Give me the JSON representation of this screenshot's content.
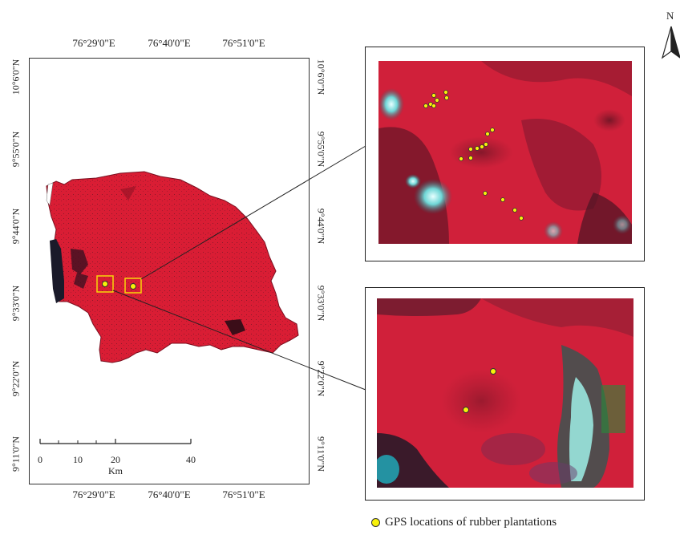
{
  "main_map": {
    "top_ticks": [
      "76°29'0\"E",
      "76°40'0\"E",
      "76°51'0\"E"
    ],
    "bottom_ticks": [
      "76°29'0\"E",
      "76°40'0\"E",
      "76°51'0\"E"
    ],
    "left_ticks": [
      "10°6'0\"N",
      "9°55'0\"N",
      "9°44'0\"N",
      "9°33'0\"N",
      "9°22'0\"N",
      "9°11'0\"N"
    ],
    "right_ticks": [
      "10°6'0\"N",
      "9°55'0\"N",
      "9°44'0\"N",
      "9°33'0\"N",
      "9°22'0\"N",
      "9°11'0\"N"
    ],
    "region_color": "#d91d34"
  },
  "scale_bar": {
    "labels": [
      "0",
      "10",
      "20",
      "40"
    ],
    "unit": "Km"
  },
  "north_arrow": {
    "label": "N"
  },
  "legend": {
    "label": "GPS locations of rubber plantations",
    "marker_color": "#f7f10a"
  },
  "inset_top": {
    "name": "zoom-area-1",
    "gps_point_count": 17
  },
  "inset_bottom": {
    "name": "zoom-area-2",
    "gps_point_count": 2
  }
}
